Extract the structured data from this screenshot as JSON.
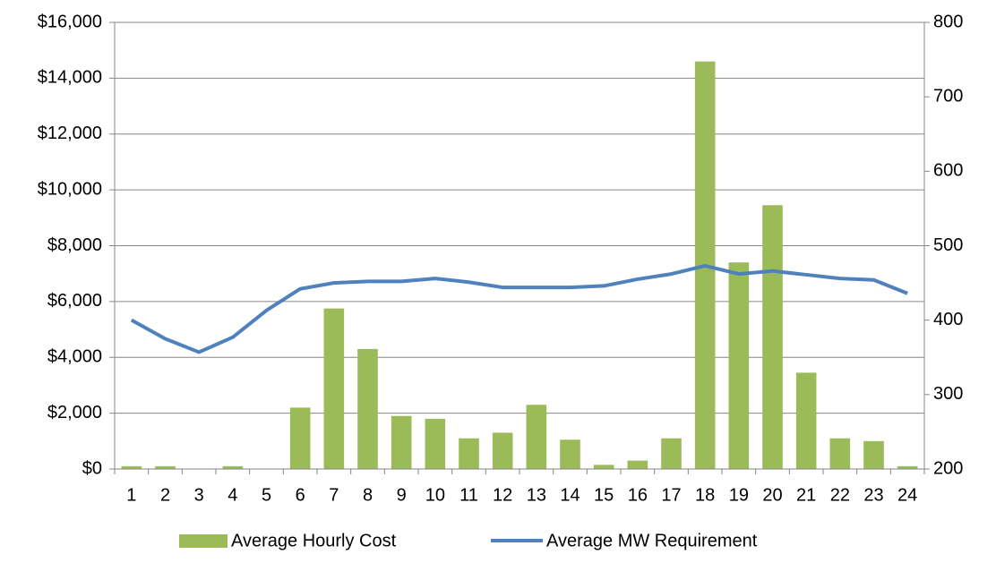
{
  "chart_data": {
    "type": "bar_line",
    "categories": [
      "1",
      "2",
      "3",
      "4",
      "5",
      "6",
      "7",
      "8",
      "9",
      "10",
      "11",
      "12",
      "13",
      "14",
      "15",
      "16",
      "17",
      "18",
      "19",
      "20",
      "21",
      "22",
      "23",
      "24"
    ],
    "series": [
      {
        "name": "Average Hourly Cost",
        "type": "bar",
        "color": "#9bbb59",
        "values": [
          100,
          100,
          0,
          100,
          0,
          2200,
          5750,
          4300,
          1900,
          1800,
          1100,
          1300,
          2300,
          1050,
          150,
          300,
          1100,
          14600,
          7400,
          9450,
          3450,
          1100,
          1000,
          100
        ]
      },
      {
        "name": "Average MW Requirement",
        "type": "line",
        "axis": "y2",
        "color": "#4f81bd",
        "values": [
          400,
          375,
          357,
          377,
          413,
          442,
          450,
          452,
          452,
          456,
          451,
          444,
          444,
          444,
          446,
          455,
          462,
          473,
          462,
          466,
          461,
          456,
          454,
          436
        ]
      }
    ],
    "ylim": [
      0,
      16000
    ],
    "yticks": [
      {
        "value": 0,
        "label": "$0"
      },
      {
        "value": 2000,
        "label": "$2,000"
      },
      {
        "value": 4000,
        "label": "$4,000"
      },
      {
        "value": 6000,
        "label": "$6,000"
      },
      {
        "value": 8000,
        "label": "$8,000"
      },
      {
        "value": 10000,
        "label": "$10,000"
      },
      {
        "value": 12000,
        "label": "$12,000"
      },
      {
        "value": 14000,
        "label": "$14,000"
      },
      {
        "value": 16000,
        "label": "$16,000"
      }
    ],
    "y2lim": [
      200,
      800
    ],
    "y2ticks": [
      200,
      300,
      400,
      500,
      600,
      700,
      800
    ],
    "grid": true,
    "legend": "bottom"
  }
}
